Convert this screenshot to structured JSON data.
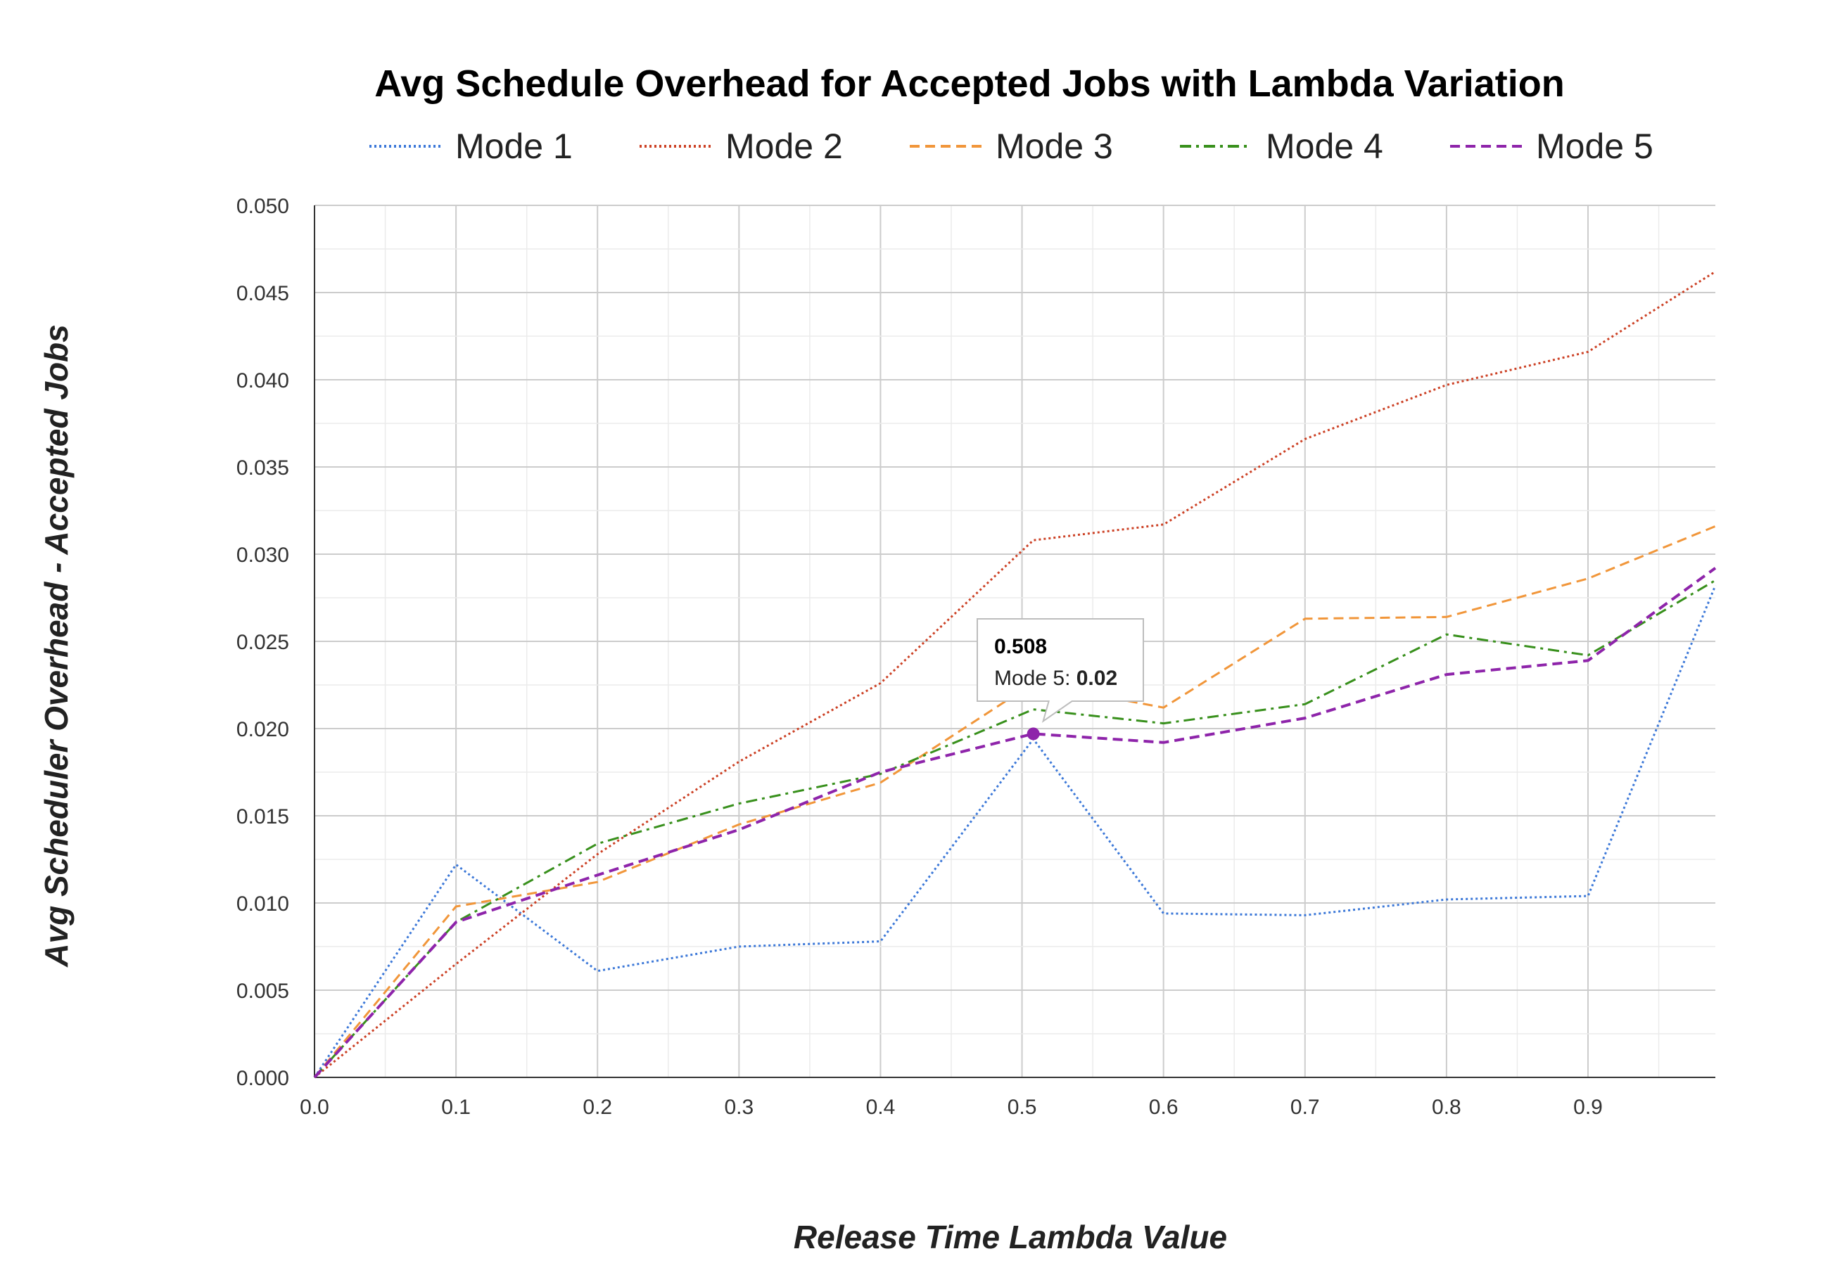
{
  "chart_data": {
    "type": "line",
    "title": "Avg Schedule Overhead for Accepted Jobs with Lambda Variation",
    "xlabel": "Release Time Lambda Value",
    "ylabel": "Avg Scheduler Overhead - Accepted Jobs",
    "xlim": [
      0.0,
      0.99
    ],
    "ylim": [
      0.0,
      0.05
    ],
    "x_ticks": [
      "0.0",
      "0.1",
      "0.2",
      "0.3",
      "0.4",
      "0.5",
      "0.6",
      "0.7",
      "0.8",
      "0.9"
    ],
    "y_ticks": [
      "0.000",
      "0.005",
      "0.010",
      "0.015",
      "0.020",
      "0.025",
      "0.030",
      "0.035",
      "0.040",
      "0.045",
      "0.050"
    ],
    "grid": true,
    "legend_position": "top",
    "x": [
      0.0,
      0.1,
      0.2,
      0.3,
      0.4,
      0.508,
      0.6,
      0.7,
      0.8,
      0.9,
      0.99
    ],
    "series": [
      {
        "name": "Mode 1",
        "color": "#3c78d8",
        "dash": "dotted",
        "values": [
          0.0,
          0.0122,
          0.0061,
          0.0075,
          0.0078,
          0.0194,
          0.0094,
          0.0093,
          0.0102,
          0.0104,
          0.0282
        ]
      },
      {
        "name": "Mode 2",
        "color": "#cc4125",
        "dash": "dotted",
        "values": [
          0.0,
          0.0065,
          0.0128,
          0.0181,
          0.0226,
          0.0308,
          0.0317,
          0.0366,
          0.0397,
          0.0416,
          0.0462
        ]
      },
      {
        "name": "Mode 3",
        "color": "#f1963a",
        "dash": "dashed",
        "values": [
          0.0,
          0.0098,
          0.0112,
          0.0145,
          0.0169,
          0.0226,
          0.0212,
          0.0263,
          0.0264,
          0.0286,
          0.0316
        ]
      },
      {
        "name": "Mode 4",
        "color": "#38901c",
        "dash": "dashdot",
        "values": [
          0.0,
          0.0089,
          0.0134,
          0.0157,
          0.0174,
          0.0211,
          0.0203,
          0.0214,
          0.0254,
          0.0242,
          0.0285
        ]
      },
      {
        "name": "Mode 5",
        "color": "#8e24aa",
        "dash": "dashed",
        "values": [
          0.0,
          0.0089,
          0.0116,
          0.0142,
          0.0175,
          0.0197,
          0.0192,
          0.0206,
          0.0231,
          0.0239,
          0.0292
        ]
      }
    ],
    "tooltip": {
      "x_label": "0.508",
      "series_label": "Mode 5: ",
      "value_label": "0.02",
      "series_index": 4,
      "x": 0.508,
      "y": 0.0197
    }
  }
}
